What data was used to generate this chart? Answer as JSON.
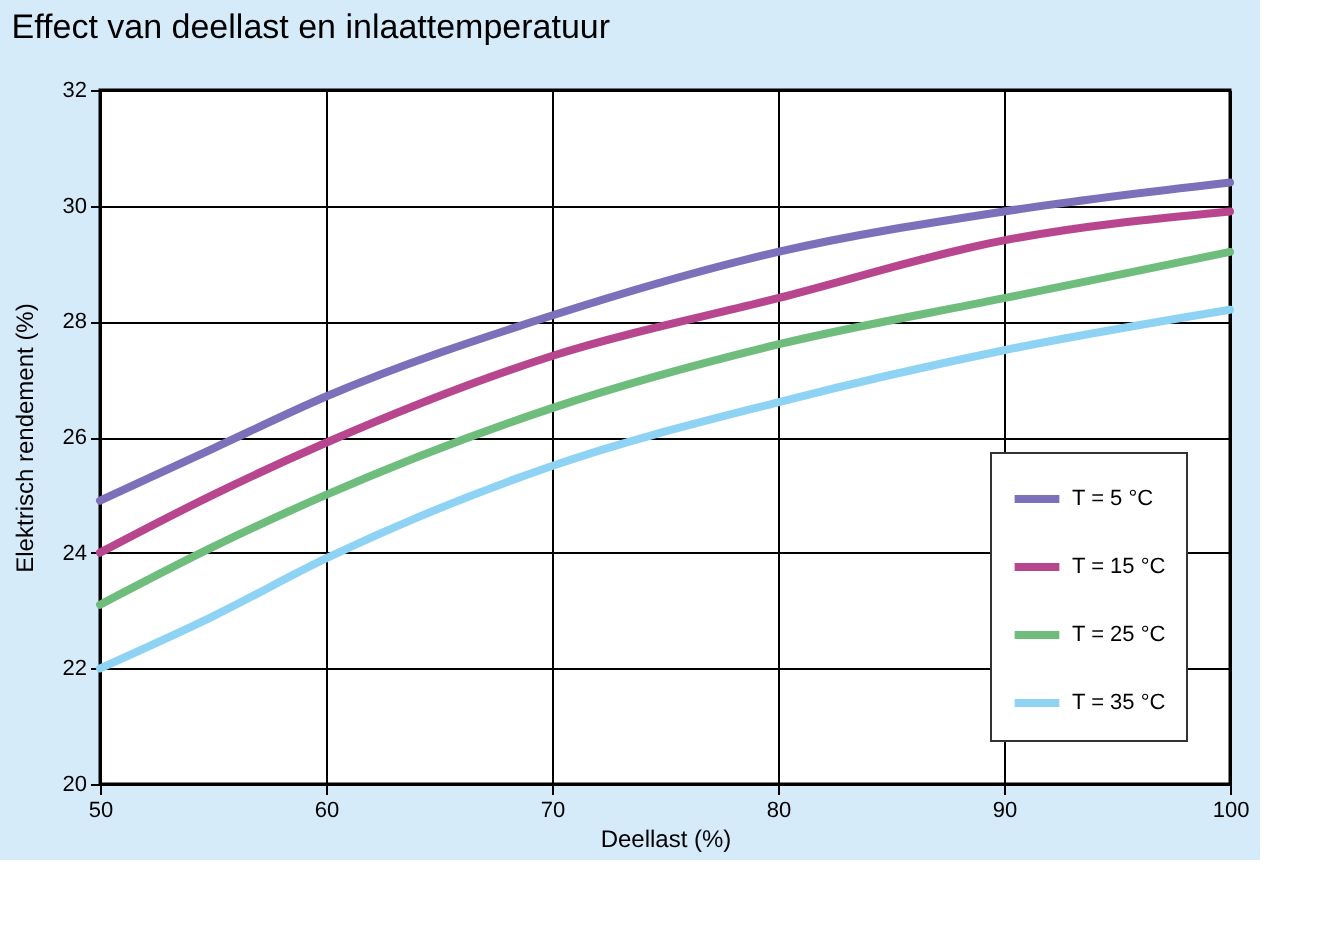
{
  "chart_data": {
    "type": "line",
    "title": "Effect van deellast en inlaattemperatuur",
    "xlabel": "Deellast (%)",
    "ylabel": "Elektrisch rendement (%)",
    "x": [
      50,
      55,
      60,
      70,
      80,
      90,
      100
    ],
    "series": [
      {
        "name": "T =   5 °C",
        "color": "#7b70b9",
        "values": [
          24.9,
          25.8,
          26.7,
          28.1,
          29.2,
          29.9,
          30.4
        ]
      },
      {
        "name": "T = 15 °C",
        "color": "#b8468f",
        "values": [
          24.0,
          25.0,
          25.9,
          27.4,
          28.4,
          29.4,
          29.9
        ]
      },
      {
        "name": "T = 25 °C",
        "color": "#6fbd7c",
        "values": [
          23.1,
          24.1,
          25.0,
          26.5,
          27.6,
          28.4,
          29.2
        ]
      },
      {
        "name": "T = 35 °C",
        "color": "#8fd3f4",
        "values": [
          22.0,
          22.9,
          23.9,
          25.5,
          26.6,
          27.5,
          28.2
        ]
      }
    ],
    "xlim": [
      50,
      100
    ],
    "xticks": [
      50,
      60,
      70,
      80,
      90,
      100
    ],
    "ylim": [
      20,
      32
    ],
    "yticks": [
      20,
      22,
      24,
      26,
      28,
      30,
      32
    ],
    "grid": true,
    "legend": "bottom right",
    "line_style": "solid",
    "marker": "none"
  }
}
